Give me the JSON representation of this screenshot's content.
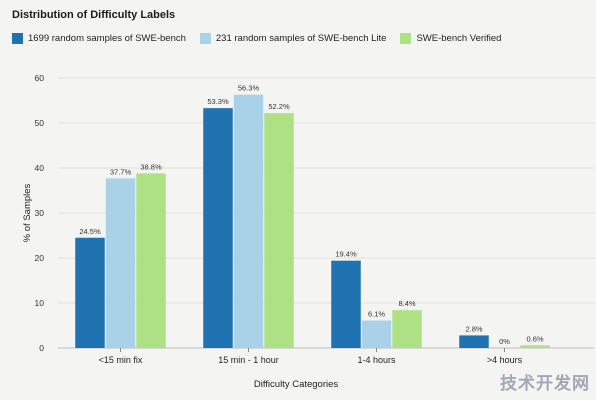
{
  "chart_data": {
    "type": "bar",
    "title": "Distribution of Difficulty Labels",
    "xlabel": "Difficulty Categories",
    "ylabel": "% of Samples",
    "ylim": [
      0,
      60
    ],
    "yticks": [
      0,
      10,
      20,
      30,
      40,
      50,
      60
    ],
    "grid": "horizontal",
    "legend_position": "top-left",
    "categories": [
      "<15 min fix",
      "15 min - 1 hour",
      "1-4 hours",
      ">4 hours"
    ],
    "series": [
      {
        "name": "1699 random samples of SWE-bench",
        "color": "#1e73b0",
        "values": [
          24.5,
          53.3,
          19.4,
          2.8
        ],
        "labels": [
          "24.5%",
          "53.3%",
          "19.4%",
          "2.8%"
        ]
      },
      {
        "name": "231 random samples of SWE-bench Lite",
        "color": "#a9d2e8",
        "values": [
          37.7,
          56.3,
          6.1,
          0
        ],
        "labels": [
          "37.7%",
          "56.3%",
          "6.1%",
          "0%"
        ]
      },
      {
        "name": "SWE-bench Verified",
        "color": "#aee183",
        "values": [
          38.8,
          52.2,
          8.4,
          0.6
        ],
        "labels": [
          "38.8%",
          "52.2%",
          "8.4%",
          "0.6%"
        ]
      }
    ]
  },
  "watermark": "技术开发网"
}
